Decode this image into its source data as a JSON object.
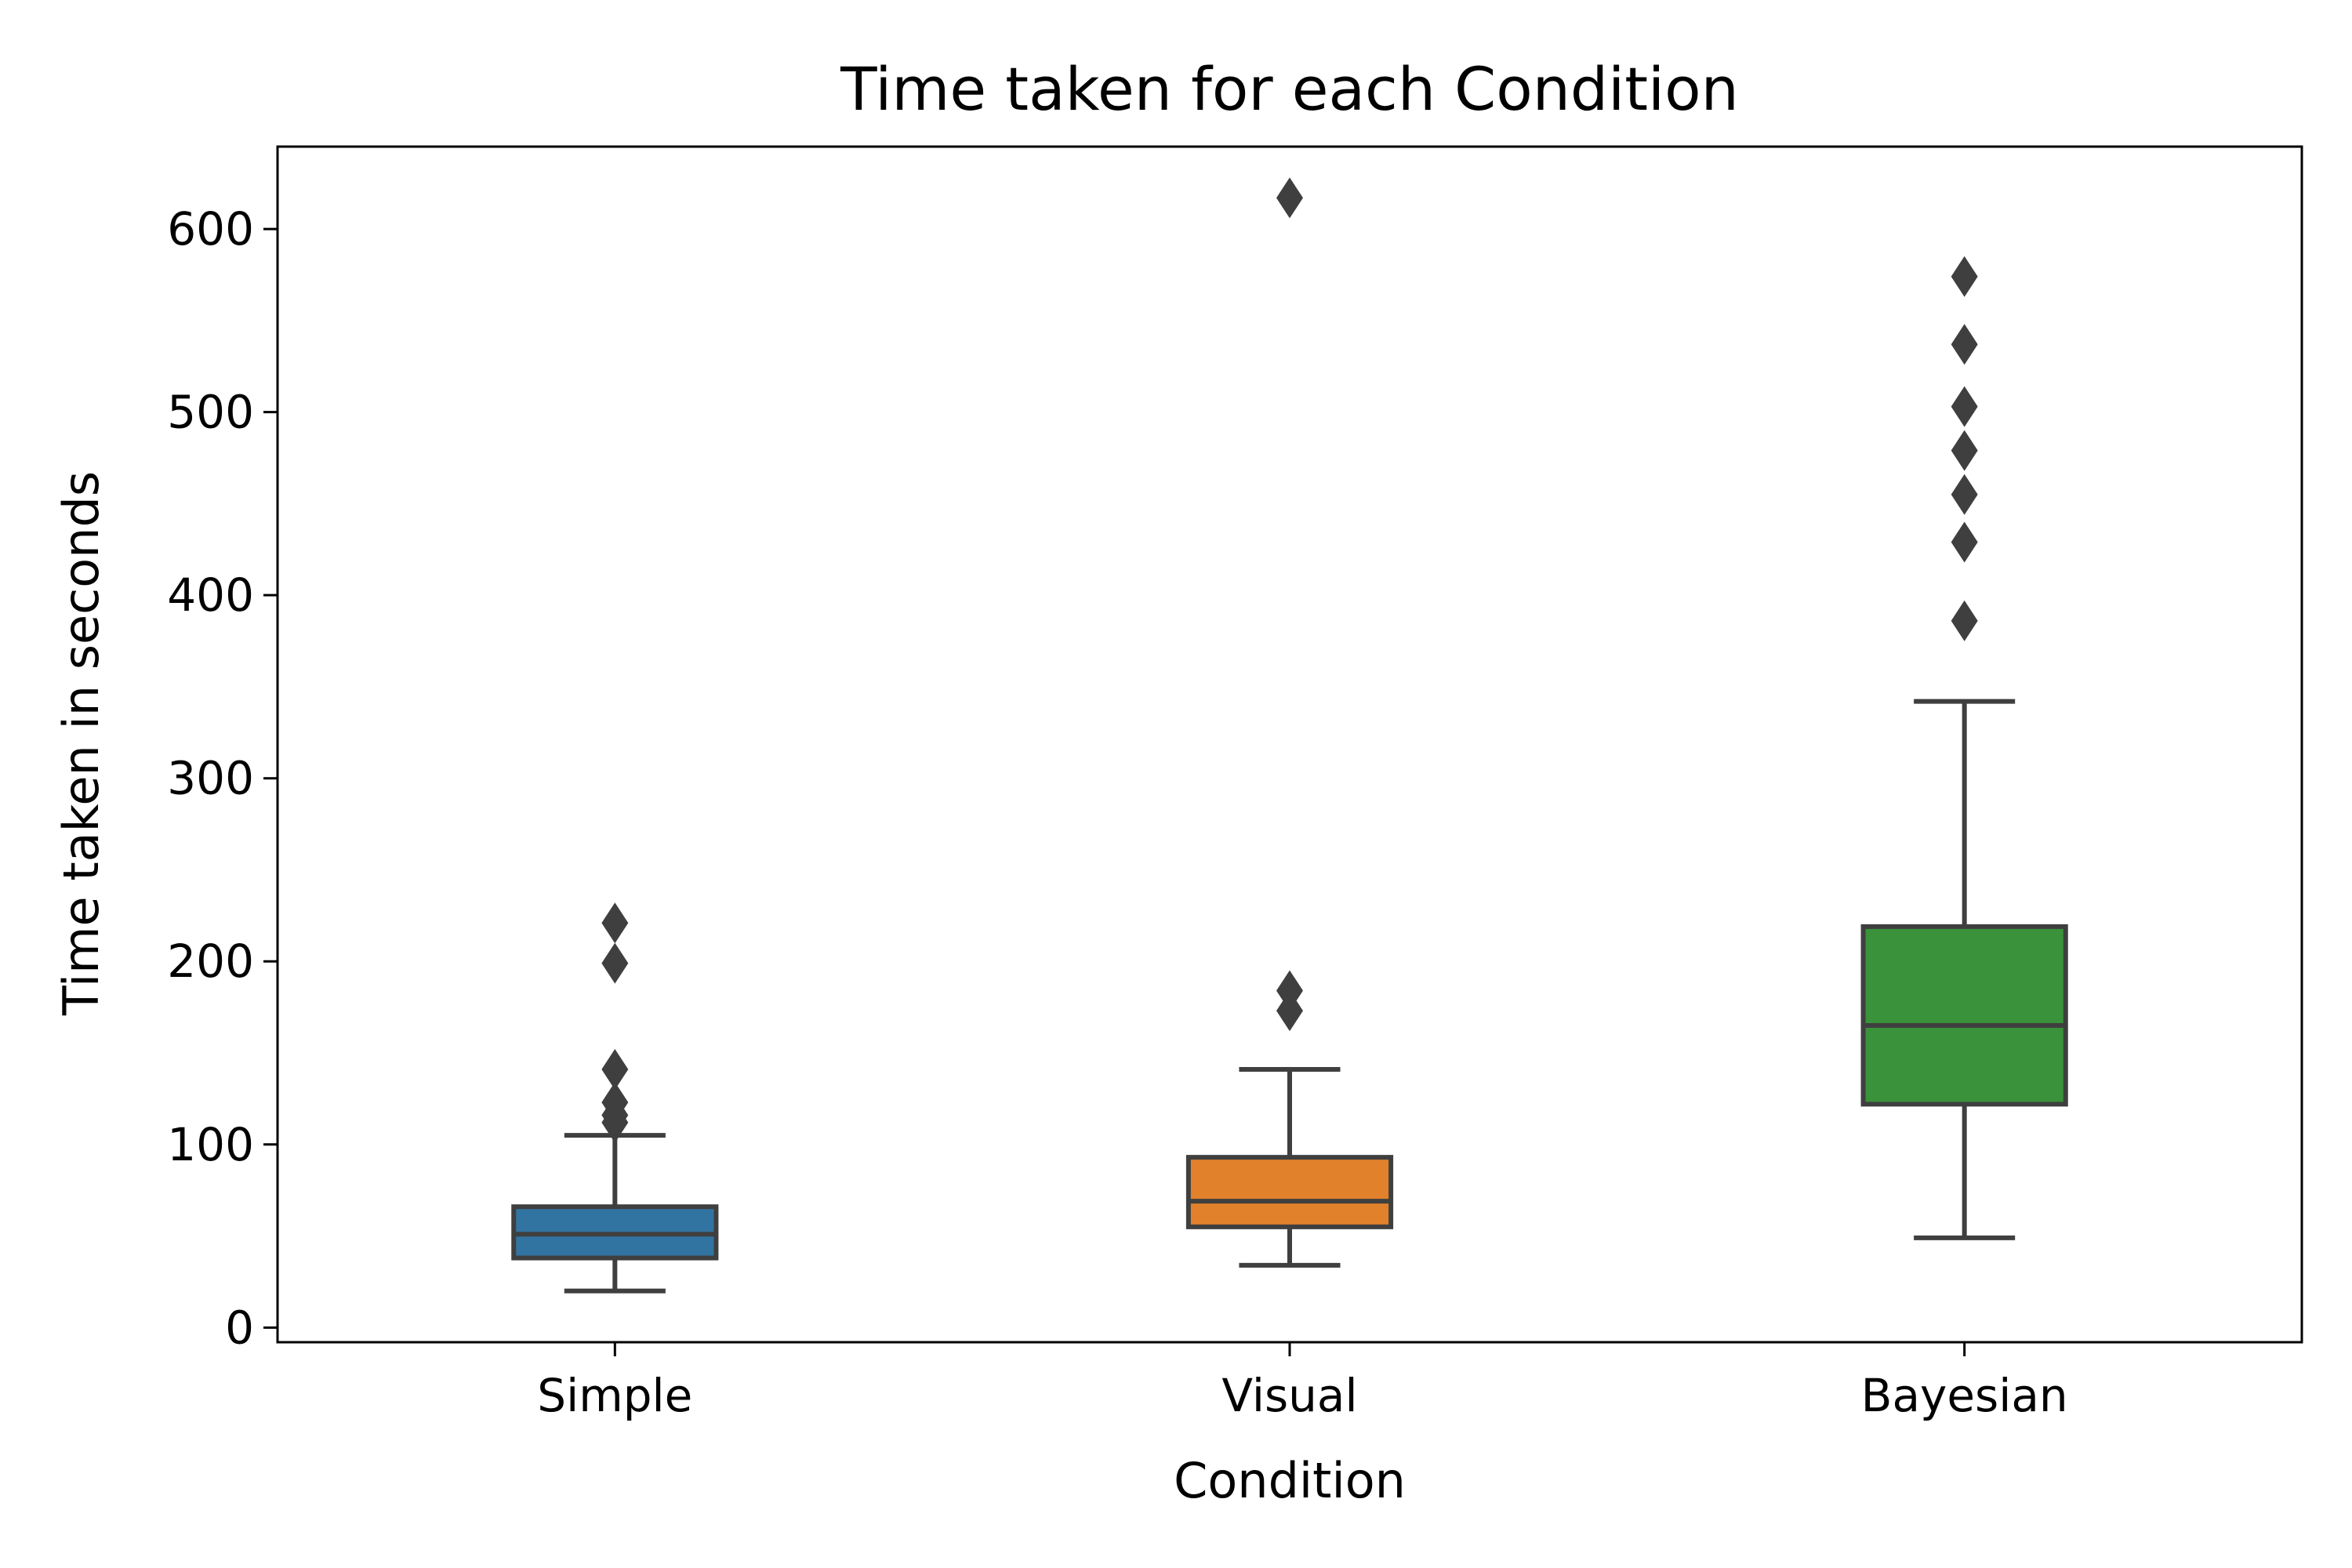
{
  "chart_data": {
    "type": "box",
    "title": "Time taken for each Condition",
    "xlabel": "Condition",
    "ylabel": "Time taken in seconds",
    "ylim": [
      -8,
      645
    ],
    "yticks": [
      0,
      100,
      200,
      300,
      400,
      500,
      600
    ],
    "categories": [
      "Simple",
      "Visual",
      "Bayesian"
    ],
    "boxes": [
      {
        "category": "Simple",
        "color": "#3274a1",
        "whisker_low": 20,
        "q1": 38,
        "median": 51,
        "q3": 66,
        "whisker_high": 105,
        "outliers": [
          112,
          116,
          123,
          141,
          199,
          221
        ]
      },
      {
        "category": "Visual",
        "color": "#e1812c",
        "whisker_low": 34,
        "q1": 55,
        "median": 69,
        "q3": 93,
        "whisker_high": 141,
        "outliers": [
          173,
          184,
          617
        ]
      },
      {
        "category": "Bayesian",
        "color": "#3a923a",
        "whisker_low": 49,
        "q1": 122,
        "median": 165,
        "q3": 219,
        "whisker_high": 342,
        "outliers": [
          386,
          429,
          455,
          479,
          503,
          537,
          574
        ]
      }
    ],
    "grid": false,
    "legend": "none"
  }
}
